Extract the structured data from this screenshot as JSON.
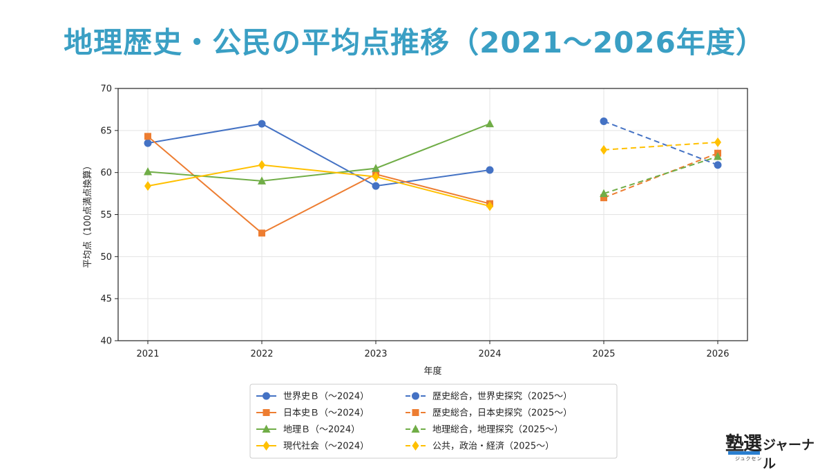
{
  "title": "地理歴史・公民の平均点推移（2021〜2026年度）",
  "brand": {
    "logo": "塾選",
    "kana": "ジュクセン",
    "name": "ジャーナル"
  },
  "chart_data": {
    "type": "line",
    "xlabel": "年度",
    "ylabel": "平均点（100点満点換算）",
    "ylim": [
      40,
      70
    ],
    "yticks": [
      40,
      45,
      50,
      55,
      60,
      65,
      70
    ],
    "x": [
      2021,
      2022,
      2023,
      2024,
      2025,
      2026
    ],
    "grid": true,
    "legend_position": "bottom",
    "series": [
      {
        "name": "世界史Ｂ（〜2024）",
        "color": "#4472c4",
        "marker": "circle",
        "dash": false,
        "points": [
          [
            2021,
            63.5
          ],
          [
            2022,
            65.8
          ],
          [
            2023,
            58.4
          ],
          [
            2024,
            60.3
          ]
        ]
      },
      {
        "name": "日本史Ｂ（〜2024）",
        "color": "#ed7d31",
        "marker": "square",
        "dash": false,
        "points": [
          [
            2021,
            64.3
          ],
          [
            2022,
            52.8
          ],
          [
            2023,
            59.8
          ],
          [
            2024,
            56.3
          ]
        ]
      },
      {
        "name": "地理Ｂ（〜2024）",
        "color": "#70ad47",
        "marker": "triangle",
        "dash": false,
        "points": [
          [
            2021,
            60.1
          ],
          [
            2022,
            59.0
          ],
          [
            2023,
            60.5
          ],
          [
            2024,
            65.8
          ]
        ]
      },
      {
        "name": "現代社会（〜2024）",
        "color": "#ffc000",
        "marker": "diamond",
        "dash": false,
        "points": [
          [
            2021,
            58.4
          ],
          [
            2022,
            60.9
          ],
          [
            2023,
            59.5
          ],
          [
            2024,
            56.0
          ]
        ]
      },
      {
        "name": "歴史総合，世界史探究（2025〜）",
        "color": "#4472c4",
        "marker": "circle",
        "dash": true,
        "points": [
          [
            2025,
            66.1
          ],
          [
            2026,
            60.9
          ]
        ]
      },
      {
        "name": "歴史総合，日本史探究（2025〜）",
        "color": "#ed7d31",
        "marker": "square",
        "dash": true,
        "points": [
          [
            2025,
            57.0
          ],
          [
            2026,
            62.3
          ]
        ]
      },
      {
        "name": "地理総合，地理探究（2025〜）",
        "color": "#70ad47",
        "marker": "triangle",
        "dash": true,
        "points": [
          [
            2025,
            57.5
          ],
          [
            2026,
            61.9
          ]
        ]
      },
      {
        "name": "公共，政治・経済（2025〜）",
        "color": "#ffc000",
        "marker": "diamond",
        "dash": true,
        "points": [
          [
            2025,
            62.7
          ],
          [
            2026,
            63.6
          ]
        ]
      }
    ]
  }
}
